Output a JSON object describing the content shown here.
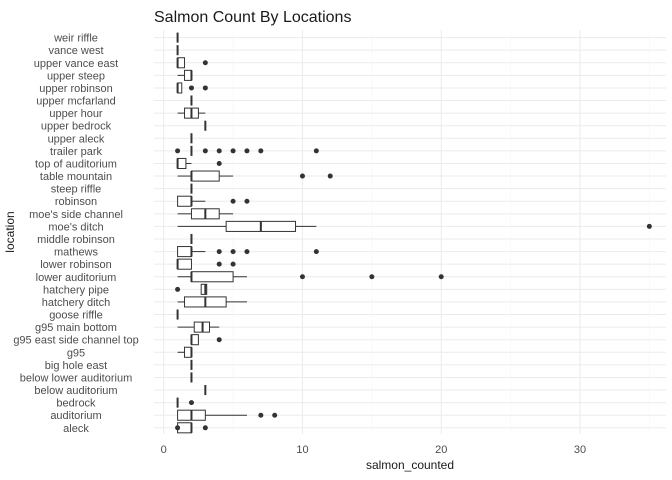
{
  "chart_data": {
    "type": "boxplot",
    "title": "Salmon Count By Locations",
    "xlabel": "salmon_counted",
    "ylabel": "location",
    "xlim": [
      -0.7,
      36.2
    ],
    "xticks": [
      0,
      10,
      20,
      30
    ],
    "grid": true,
    "legend": "none",
    "colors": {
      "box_fill": "#ffffff",
      "stroke": "#333333",
      "grid": "#ebebeb"
    },
    "categories": [
      {
        "label": "weir riffle",
        "min": 1,
        "q1": 1,
        "median": 1,
        "q3": 1,
        "max": 1,
        "outliers": []
      },
      {
        "label": "vance west",
        "min": 1,
        "q1": 1,
        "median": 1,
        "q3": 1,
        "max": 1,
        "outliers": []
      },
      {
        "label": "upper vance east",
        "min": 1,
        "q1": 1,
        "median": 1,
        "q3": 1.5,
        "max": 1.5,
        "outliers": [
          3
        ]
      },
      {
        "label": "upper steep",
        "min": 1,
        "q1": 1.5,
        "median": 2,
        "q3": 2,
        "max": 2,
        "outliers": []
      },
      {
        "label": "upper robinson",
        "min": 1,
        "q1": 1,
        "median": 1,
        "q3": 1.3,
        "max": 1.3,
        "outliers": [
          2,
          3
        ]
      },
      {
        "label": "upper mcfarland",
        "min": 2,
        "q1": 2,
        "median": 2,
        "q3": 2,
        "max": 2,
        "outliers": []
      },
      {
        "label": "upper hour",
        "min": 1,
        "q1": 1.5,
        "median": 2,
        "q3": 2.5,
        "max": 3,
        "outliers": []
      },
      {
        "label": "upper bedrock",
        "min": 3,
        "q1": 3,
        "median": 3,
        "q3": 3,
        "max": 3,
        "outliers": []
      },
      {
        "label": "upper aleck",
        "min": 2,
        "q1": 2,
        "median": 2,
        "q3": 2,
        "max": 2,
        "outliers": []
      },
      {
        "label": "trailer park",
        "min": 2,
        "q1": 2,
        "median": 2,
        "q3": 2,
        "max": 2,
        "outliers": [
          1,
          3,
          4,
          5,
          6,
          7,
          11
        ]
      },
      {
        "label": "top of auditorium",
        "min": 1,
        "q1": 1,
        "median": 1,
        "q3": 1.6,
        "max": 2,
        "outliers": [
          4
        ]
      },
      {
        "label": "table mountain",
        "min": 1,
        "q1": 2,
        "median": 2,
        "q3": 4,
        "max": 5,
        "outliers": [
          10,
          12
        ]
      },
      {
        "label": "steep riffle",
        "min": 2,
        "q1": 2,
        "median": 2,
        "q3": 2,
        "max": 2,
        "outliers": []
      },
      {
        "label": "robinson",
        "min": 1,
        "q1": 1,
        "median": 2,
        "q3": 2,
        "max": 3,
        "outliers": [
          5,
          6
        ]
      },
      {
        "label": "moe's side channel",
        "min": 1,
        "q1": 2,
        "median": 3,
        "q3": 4,
        "max": 5,
        "outliers": []
      },
      {
        "label": "moe's ditch",
        "min": 1,
        "q1": 4.5,
        "median": 7,
        "q3": 9.5,
        "max": 11,
        "outliers": [
          35
        ]
      },
      {
        "label": "middle robinson",
        "min": 2,
        "q1": 2,
        "median": 2,
        "q3": 2,
        "max": 2,
        "outliers": []
      },
      {
        "label": "mathews",
        "min": 1,
        "q1": 1,
        "median": 2,
        "q3": 2,
        "max": 3,
        "outliers": [
          4,
          5,
          6,
          11
        ]
      },
      {
        "label": "lower robinson",
        "min": 1,
        "q1": 1,
        "median": 1,
        "q3": 2,
        "max": 2,
        "outliers": [
          4,
          5
        ]
      },
      {
        "label": "lower auditorium",
        "min": 1,
        "q1": 2,
        "median": 2,
        "q3": 5,
        "max": 6,
        "outliers": [
          10,
          15,
          20
        ]
      },
      {
        "label": "hatchery pipe",
        "min": 2.7,
        "q1": 2.7,
        "median": 3,
        "q3": 3.1,
        "max": 3.1,
        "outliers": [
          1
        ]
      },
      {
        "label": "hatchery ditch",
        "min": 1,
        "q1": 1.5,
        "median": 3,
        "q3": 4.5,
        "max": 6,
        "outliers": []
      },
      {
        "label": "goose riffle",
        "min": 1,
        "q1": 1,
        "median": 1,
        "q3": 1,
        "max": 1,
        "outliers": []
      },
      {
        "label": "g95 main bottom",
        "min": 1,
        "q1": 2.2,
        "median": 2.8,
        "q3": 3.3,
        "max": 4,
        "outliers": []
      },
      {
        "label": "g95 east side channel top",
        "min": 2,
        "q1": 2,
        "median": 2,
        "q3": 2.5,
        "max": 2.5,
        "outliers": [
          4
        ]
      },
      {
        "label": "g95",
        "min": 1,
        "q1": 1.5,
        "median": 2,
        "q3": 2,
        "max": 2,
        "outliers": []
      },
      {
        "label": "big hole east",
        "min": 2,
        "q1": 2,
        "median": 2,
        "q3": 2,
        "max": 2,
        "outliers": []
      },
      {
        "label": "below lower auditorium",
        "min": 2,
        "q1": 2,
        "median": 2,
        "q3": 2,
        "max": 2,
        "outliers": []
      },
      {
        "label": "below auditorium",
        "min": 3,
        "q1": 3,
        "median": 3,
        "q3": 3,
        "max": 3,
        "outliers": []
      },
      {
        "label": "bedrock",
        "min": 1,
        "q1": 1,
        "median": 1,
        "q3": 1,
        "max": 1,
        "outliers": [
          2
        ]
      },
      {
        "label": "auditorium",
        "min": 1,
        "q1": 1,
        "median": 2,
        "q3": 3,
        "max": 6,
        "outliers": [
          7,
          8
        ]
      },
      {
        "label": "aleck",
        "min": 1,
        "q1": 1,
        "median": 2,
        "q3": 2,
        "max": 2,
        "outliers": [
          1,
          3
        ]
      }
    ]
  }
}
